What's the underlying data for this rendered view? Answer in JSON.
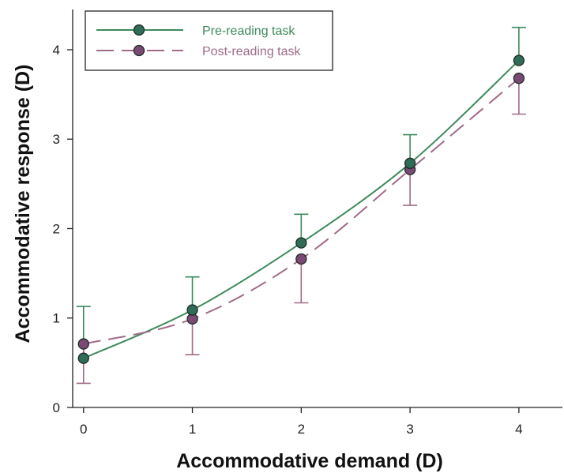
{
  "chart_data": {
    "type": "line",
    "title": "",
    "xlabel": "Accommodative demand (D)",
    "ylabel": "Accommodative response (D)",
    "x": [
      0,
      1,
      2,
      3,
      4
    ],
    "xlim": [
      -0.1,
      4.4
    ],
    "ylim": [
      0,
      4.45
    ],
    "x_ticks": [
      "0",
      "1",
      "2",
      "3",
      "4"
    ],
    "y_ticks": [
      "0",
      "1",
      "2",
      "3",
      "4"
    ],
    "grid": false,
    "legend_position": "top-left",
    "series": [
      {
        "name": "Pre-reading task",
        "values": [
          0.55,
          1.09,
          1.84,
          2.73,
          3.88
        ],
        "error_upper": [
          1.13,
          1.46,
          2.16,
          3.05,
          4.25
        ],
        "color": "#3d8a5c",
        "marker_color": "#2f6d57",
        "line_style": "solid"
      },
      {
        "name": "Post-reading task",
        "values": [
          0.71,
          0.99,
          1.66,
          2.66,
          3.68
        ],
        "error_lower": [
          0.27,
          0.59,
          1.17,
          2.26,
          3.28
        ],
        "color": "#a06a88",
        "marker_color": "#7b4a74",
        "line_style": "dashed"
      }
    ]
  }
}
